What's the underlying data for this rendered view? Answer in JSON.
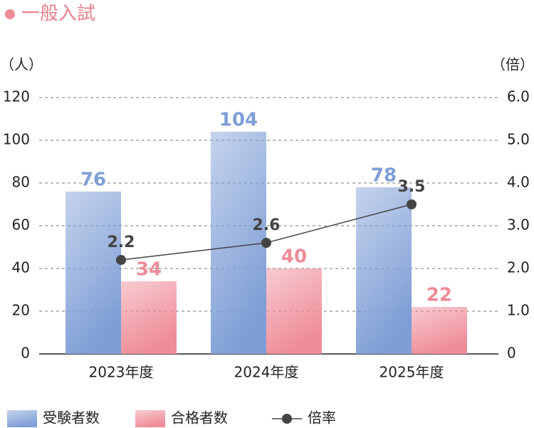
{
  "chart_data": {
    "type": "bar_line",
    "title": "一般入試",
    "ylabel": "（人）",
    "y2label": "（倍）",
    "categories": [
      "2023年度",
      "2024年度",
      "2025年度"
    ],
    "series": [
      {
        "name": "受験者数",
        "type": "bar",
        "color": "#7f9ed6",
        "values": [
          76,
          104,
          78
        ]
      },
      {
        "name": "合格者数",
        "type": "bar",
        "color": "#ee8c98",
        "values": [
          34,
          40,
          22
        ]
      },
      {
        "name": "倍率",
        "type": "line",
        "axis": "y2",
        "color": "#444444",
        "values": [
          2.2,
          2.6,
          3.5
        ]
      }
    ],
    "ylim": [
      0,
      120
    ],
    "yticks": [
      0,
      20,
      40,
      60,
      80,
      100,
      120
    ],
    "y2lim": [
      0,
      6
    ],
    "y2ticks": [
      0,
      {
        "value": 1,
        "label": "1.0"
      },
      {
        "value": 2,
        "label": "2.0"
      },
      {
        "value": 3,
        "label": "3.0"
      },
      {
        "value": 4,
        "label": "4.0"
      },
      {
        "value": 5,
        "label": "5.0"
      },
      {
        "value": 6,
        "label": "6.0"
      }
    ],
    "grid": true
  }
}
